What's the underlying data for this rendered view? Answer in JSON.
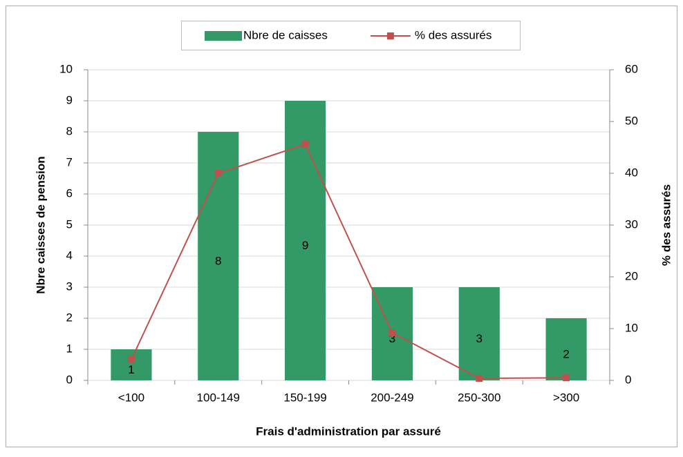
{
  "chart_data": {
    "type": "bar",
    "categories": [
      "<100",
      "100-149",
      "150-199",
      "200-249",
      "250-300",
      ">300"
    ],
    "series": [
      {
        "name": "Nbre de caisses",
        "type": "bar",
        "color": "#339966",
        "values": [
          1,
          8,
          9,
          3,
          3,
          2
        ]
      },
      {
        "name": "% des assurés",
        "type": "line",
        "axis": "y2",
        "color": "#c0504d",
        "values": [
          4.0,
          40.0,
          45.6,
          9.2,
          0.4,
          0.5
        ]
      }
    ],
    "xlabel": "Frais d'administration par assuré",
    "ylabel": "Nbre caisses de pension",
    "y2label": "% des assurés",
    "ylim": [
      0,
      10
    ],
    "yticks": [
      0,
      1,
      2,
      3,
      4,
      5,
      6,
      7,
      8,
      9,
      10
    ],
    "y2lim": [
      0,
      60
    ],
    "y2ticks": [
      0,
      10,
      20,
      30,
      40,
      50,
      60
    ],
    "grid": true,
    "legend": "top"
  }
}
